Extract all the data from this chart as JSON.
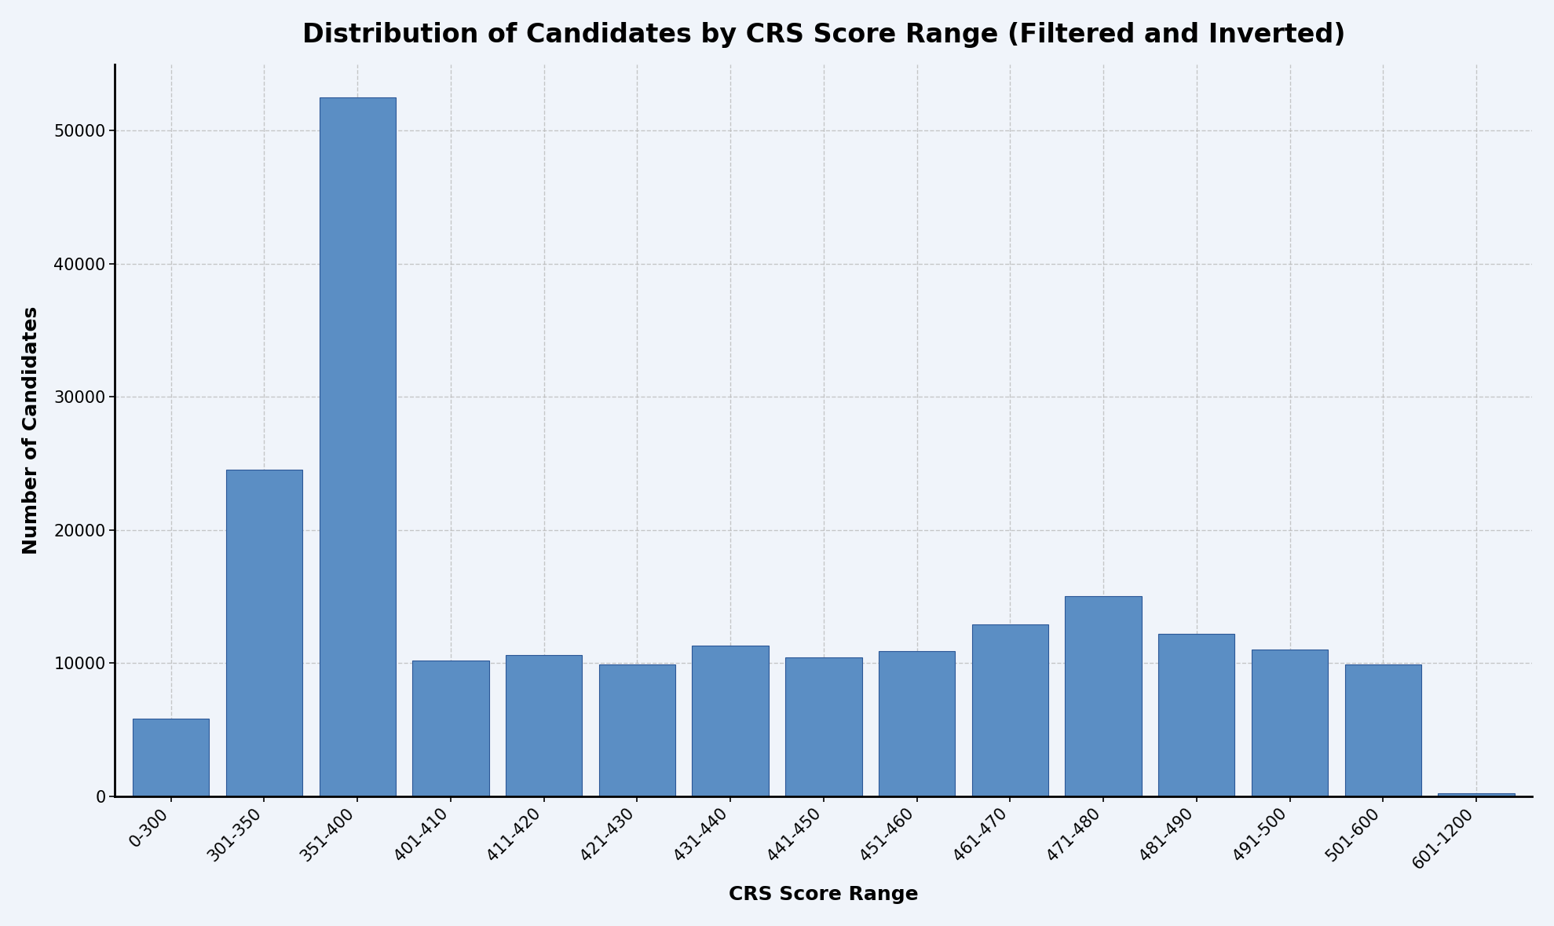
{
  "title": "Distribution of Candidates by CRS Score Range (Filtered and Inverted)",
  "xlabel": "CRS Score Range",
  "ylabel": "Number of Candidates",
  "categories": [
    "0-300",
    "301-350",
    "351-400",
    "401-410",
    "411-420",
    "421-430",
    "431-440",
    "441-450",
    "451-460",
    "461-470",
    "471-480",
    "481-490",
    "491-500",
    "501-600",
    "601-1200"
  ],
  "values": [
    5800,
    24500,
    52500,
    10200,
    10600,
    9900,
    11300,
    10400,
    10900,
    12900,
    15000,
    12200,
    11000,
    9900,
    200
  ],
  "bar_color": "#5b8ec4",
  "bar_edgecolor": "#2b5797",
  "background_color": "#f0f4fa",
  "plot_bg_color": "#f0f4fa",
  "ylim": [
    0,
    55000
  ],
  "yticks": [
    0,
    10000,
    20000,
    30000,
    40000,
    50000
  ],
  "title_fontsize": 24,
  "axis_label_fontsize": 18,
  "tick_fontsize": 15,
  "grid_color": "#bbbbbb",
  "grid_linestyle": "--",
  "grid_alpha": 0.8,
  "bar_width": 0.82
}
